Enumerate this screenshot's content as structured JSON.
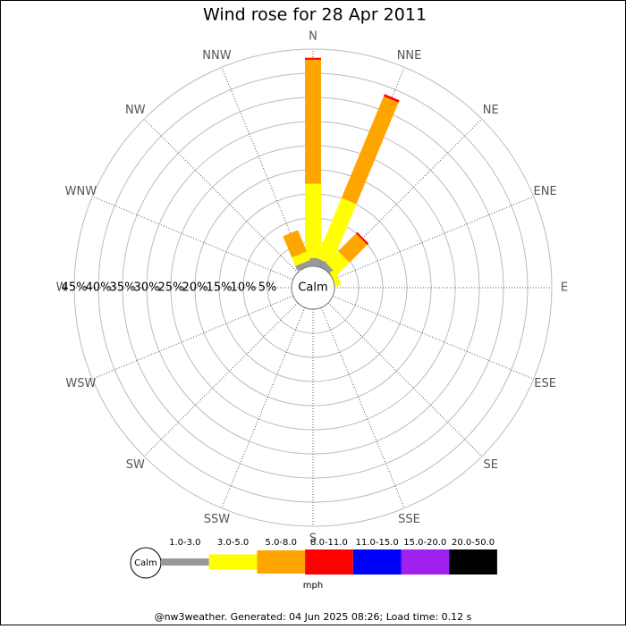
{
  "chart_data": {
    "type": "windrose",
    "title": "Wind rose for 28 Apr 2011",
    "calm_label": "Calm",
    "categories": [
      "N",
      "NNE",
      "NE",
      "ENE",
      "E",
      "ESE",
      "SE",
      "SSE",
      "S",
      "SSW",
      "SW",
      "WSW",
      "W",
      "WNW",
      "NW",
      "NNW"
    ],
    "series": [
      {
        "name": "1.0-3.0",
        "color": "#999999",
        "values": [
          1.7,
          1.5,
          1.1,
          0,
          0,
          0,
          0,
          0,
          0,
          0,
          0,
          0,
          0,
          0,
          0,
          1.1
        ]
      },
      {
        "name": "3.0-5.0",
        "color": "#ffff00",
        "values": [
          15.4,
          13.5,
          3.5,
          1.2,
          0,
          0,
          0,
          0,
          0,
          0,
          0,
          0,
          0,
          0,
          0,
          1.9
        ]
      },
      {
        "name": "5.0-8.0",
        "color": "#ffa500",
        "values": [
          25.7,
          22.8,
          5.2,
          0,
          0,
          0,
          0,
          0,
          0,
          0,
          0,
          0,
          0,
          0,
          0,
          4.8
        ]
      },
      {
        "name": "8.0-11.0",
        "color": "#ff0000",
        "values": [
          0.4,
          0.5,
          0.4,
          0,
          0,
          0,
          0,
          0,
          0,
          0,
          0,
          0,
          0,
          0,
          0,
          0
        ]
      },
      {
        "name": "11.0-15.0",
        "color": "#0000ff",
        "values": [
          0,
          0,
          0,
          0,
          0,
          0,
          0,
          0,
          0,
          0,
          0,
          0,
          0,
          0,
          0,
          0
        ]
      },
      {
        "name": "15.0-20.0",
        "color": "#a020f0",
        "values": [
          0,
          0,
          0,
          0,
          0,
          0,
          0,
          0,
          0,
          0,
          0,
          0,
          0,
          0,
          0,
          0
        ]
      },
      {
        "name": "20.0-50.0",
        "color": "#000000",
        "values": [
          0,
          0,
          0,
          0,
          0,
          0,
          0,
          0,
          0,
          0,
          0,
          0,
          0,
          0,
          0,
          0
        ]
      }
    ],
    "rlim": [
      0,
      45
    ],
    "rticks": [
      {
        "value": 5,
        "label": "5%"
      },
      {
        "value": 10,
        "label": "10%"
      },
      {
        "value": 15,
        "label": "15%"
      },
      {
        "value": 20,
        "label": "20%"
      },
      {
        "value": 25,
        "label": "25%"
      },
      {
        "value": 30,
        "label": "30%"
      },
      {
        "value": 35,
        "label": "35%"
      },
      {
        "value": 40,
        "label": "40%"
      },
      {
        "value": 45,
        "label": "45%"
      }
    ],
    "unit": "mph",
    "footer": "@nw3weather. Generated: 04 Jun 2025 08:26; Load time: 0.12 s"
  }
}
